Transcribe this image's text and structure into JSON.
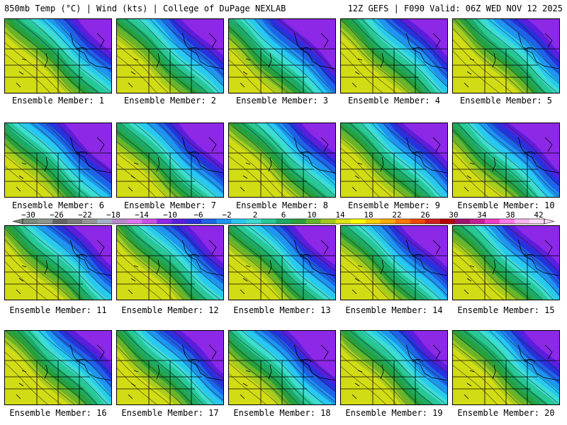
{
  "header": {
    "left": "850mb Temp (°C) | Wind (kts) | College of DuPage NEXLAB",
    "right": "12Z GEFS | F090 Valid: 06Z WED NOV 12 2025"
  },
  "members": [
    {
      "label": "Ensemble Member: 1"
    },
    {
      "label": "Ensemble Member: 2"
    },
    {
      "label": "Ensemble Member: 3"
    },
    {
      "label": "Ensemble Member: 4"
    },
    {
      "label": "Ensemble Member: 5"
    },
    {
      "label": "Ensemble Member: 6"
    },
    {
      "label": "Ensemble Member: 7"
    },
    {
      "label": "Ensemble Member: 8"
    },
    {
      "label": "Ensemble Member: 9"
    },
    {
      "label": "Ensemble Member: 10"
    },
    {
      "label": "Ensemble Member: 11"
    },
    {
      "label": "Ensemble Member: 12"
    },
    {
      "label": "Ensemble Member: 13"
    },
    {
      "label": "Ensemble Member: 14"
    },
    {
      "label": "Ensemble Member: 15"
    },
    {
      "label": "Ensemble Member: 16"
    },
    {
      "label": "Ensemble Member: 17"
    },
    {
      "label": "Ensemble Member: 18"
    },
    {
      "label": "Ensemble Member: 19"
    },
    {
      "label": "Ensemble Member: 20"
    }
  ],
  "colorbar": {
    "tick_labels": [
      "−30",
      "−26",
      "−22",
      "−18",
      "−14",
      "−10",
      "−6",
      "−2",
      "2",
      "6",
      "10",
      "14",
      "18",
      "22",
      "26",
      "30",
      "34",
      "38",
      "42"
    ],
    "colors": [
      "#7c8a7c",
      "#8e968e",
      "#646464",
      "#7a7a7a",
      "#969696",
      "#a5b4c8",
      "#b48cc8",
      "#dc78f0",
      "#c850e6",
      "#8c28e6",
      "#5a1edc",
      "#2832dc",
      "#1e64e6",
      "#1e96f0",
      "#28c8f0",
      "#3cdcd2",
      "#28c896",
      "#1eaa64",
      "#28a03c",
      "#64b428",
      "#a0c81e",
      "#dce614",
      "#ffff00",
      "#ffd200",
      "#ffaa00",
      "#ff7800",
      "#f04600",
      "#d21e1e",
      "#b40000",
      "#a0146e",
      "#c81e96",
      "#f03cc8",
      "#ff78e6",
      "#ffb4f0",
      "#ffdcfa"
    ]
  }
}
